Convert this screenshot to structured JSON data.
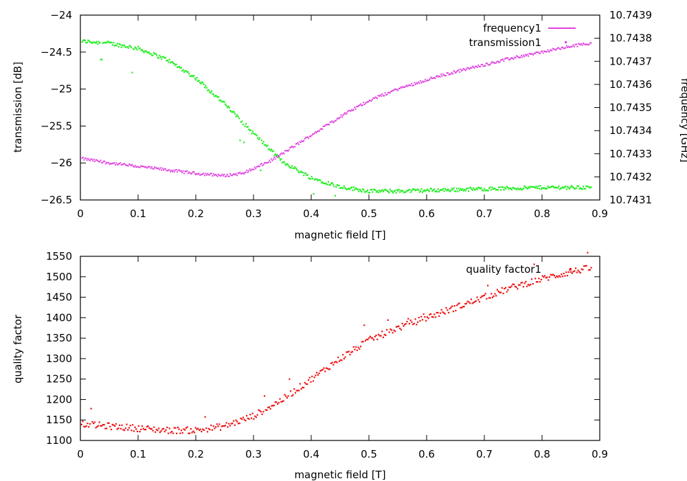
{
  "colors": {
    "frequency": "#e040e0",
    "transmission": "#22ee22",
    "quality": "#ee1111"
  },
  "chart_data": [
    {
      "type": "scatter",
      "title": "",
      "xlabel": "magnetic field [T]",
      "ylabel": "transmission [dB]",
      "y2label": "frequency [GHz]",
      "xlim": [
        0,
        0.9
      ],
      "ylim": [
        -26.5,
        -24
      ],
      "y2lim": [
        10.7431,
        10.7439
      ],
      "x_ticks": [
        "0",
        "0.1",
        "0.2",
        "0.3",
        "0.4",
        "0.5",
        "0.6",
        "0.7",
        "0.8",
        "0.9"
      ],
      "y_ticks": [
        "-24",
        "-24.5",
        "-25",
        "-25.5",
        "-26",
        "-26.5"
      ],
      "y2_ticks": [
        "10.7439",
        "10.7438",
        "10.7437",
        "10.7436",
        "10.7435",
        "10.7434",
        "10.7433",
        "10.7432",
        "10.7431"
      ],
      "legend": [
        "frequency1",
        "transmission1"
      ],
      "series": [
        {
          "name": "frequency1",
          "axis": "y2",
          "x": [
            0,
            0.05,
            0.1,
            0.15,
            0.2,
            0.25,
            0.28,
            0.3,
            0.33,
            0.35,
            0.4,
            0.45,
            0.5,
            0.55,
            0.6,
            0.65,
            0.7,
            0.75,
            0.8,
            0.85,
            0.885
          ],
          "values": [
            10.74328,
            10.74326,
            10.743245,
            10.74323,
            10.743215,
            10.743205,
            10.743215,
            10.743235,
            10.74327,
            10.7433,
            10.74338,
            10.74346,
            10.74353,
            10.74358,
            10.74362,
            10.743655,
            10.743685,
            10.743715,
            10.74374,
            10.743765,
            10.74378
          ]
        },
        {
          "name": "transmission1",
          "axis": "y",
          "x": [
            0,
            0.05,
            0.1,
            0.15,
            0.2,
            0.25,
            0.3,
            0.35,
            0.4,
            0.45,
            0.5,
            0.55,
            0.6,
            0.65,
            0.7,
            0.75,
            0.8,
            0.85,
            0.885
          ],
          "values": [
            -24.35,
            -24.38,
            -24.45,
            -24.6,
            -24.85,
            -25.2,
            -25.6,
            -25.98,
            -26.2,
            -26.32,
            -26.38,
            -26.38,
            -26.37,
            -26.36,
            -26.35,
            -26.34,
            -26.33,
            -26.33,
            -26.33
          ]
        }
      ]
    },
    {
      "type": "scatter",
      "title": "",
      "xlabel": "magnetic field [T]",
      "ylabel": "quality factor",
      "xlim": [
        0,
        0.9
      ],
      "ylim": [
        1100,
        1550
      ],
      "x_ticks": [
        "0",
        "0.1",
        "0.2",
        "0.3",
        "0.4",
        "0.5",
        "0.6",
        "0.7",
        "0.8",
        "0.9"
      ],
      "y_ticks": [
        "1550",
        "1500",
        "1450",
        "1400",
        "1350",
        "1300",
        "1250",
        "1200",
        "1150",
        "1100"
      ],
      "legend": [
        "quality factor1"
      ],
      "series": [
        {
          "name": "quality factor1",
          "axis": "y",
          "x": [
            0,
            0.05,
            0.1,
            0.15,
            0.2,
            0.25,
            0.3,
            0.35,
            0.4,
            0.45,
            0.5,
            0.55,
            0.6,
            0.65,
            0.7,
            0.75,
            0.8,
            0.85,
            0.885
          ],
          "values": [
            1140,
            1135,
            1130,
            1125,
            1125,
            1135,
            1160,
            1200,
            1250,
            1300,
            1345,
            1375,
            1400,
            1425,
            1450,
            1475,
            1495,
            1512,
            1522
          ]
        }
      ]
    }
  ]
}
